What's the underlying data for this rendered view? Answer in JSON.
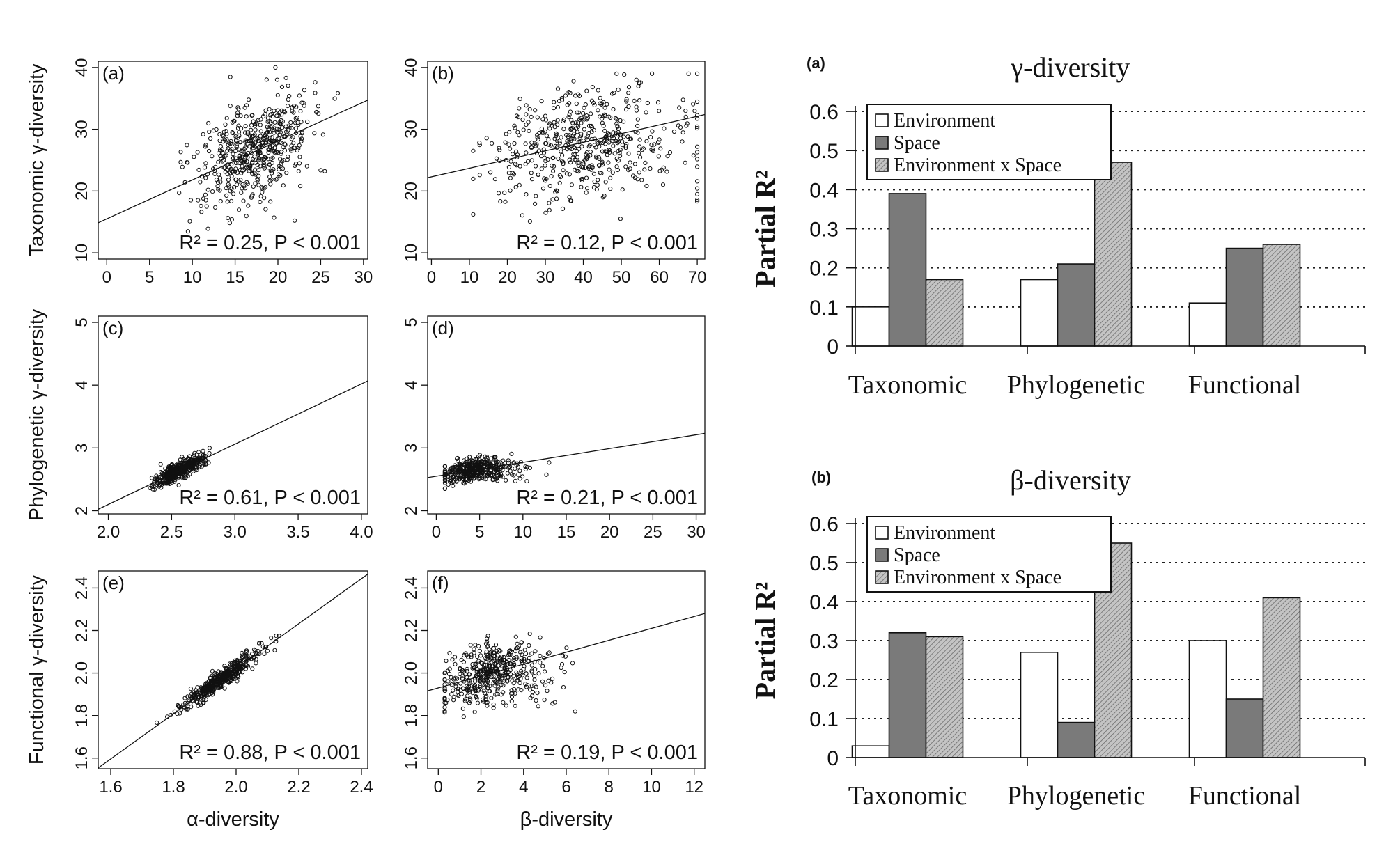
{
  "colors": {
    "environment": "#ffffff",
    "space": "#7a7a7a",
    "interaction": "#bdbdbd",
    "ink": "#111111"
  },
  "chart_data": [
    {
      "type": "scatter",
      "panel": "(a)",
      "xlabel": "",
      "ylabel": "Taxonomic γ-diversity",
      "xlim": [
        -1,
        30.5
      ],
      "ylim": [
        9,
        41
      ],
      "xticks": [
        0,
        5,
        10,
        15,
        20,
        25,
        30
      ],
      "yticks": [
        10,
        20,
        30,
        40
      ],
      "annotation": "R² = 0.25, P < 0.001",
      "fit": {
        "intercept": 15.5,
        "slope": 0.63
      },
      "cloud": {
        "xmean": 17.5,
        "xsd": 3.5,
        "ymean": 27,
        "ysd": 4.5,
        "rho": 0.5,
        "n": 520,
        "xmin": 7,
        "xmax": 27,
        "ymin": 13,
        "ymax": 40
      }
    },
    {
      "type": "scatter",
      "panel": "(b)",
      "xlabel": "",
      "ylabel": "",
      "xlim": [
        -1,
        72
      ],
      "ylim": [
        9,
        41
      ],
      "xticks": [
        0,
        10,
        20,
        30,
        40,
        50,
        60,
        70
      ],
      "yticks": [
        10,
        20,
        30,
        40
      ],
      "annotation": "R² = 0.12, P < 0.001",
      "fit": {
        "intercept": 22.3,
        "slope": 0.14
      },
      "cloud": {
        "xmean": 36,
        "xsd": 11,
        "ymean": 27.5,
        "ysd": 4.5,
        "rho": 0.35,
        "n": 520,
        "xmin": 11,
        "xmax": 70,
        "ymin": 13,
        "ymax": 39
      }
    },
    {
      "type": "scatter",
      "panel": "(c)",
      "xlabel": "",
      "ylabel": "Phylogenetic γ-diversity",
      "xlim": [
        1.92,
        4.05
      ],
      "ylim": [
        1.95,
        5.1
      ],
      "xticks": [
        2.0,
        2.5,
        3.0,
        3.5,
        4.0
      ],
      "yticks": [
        2.0,
        3.0,
        4.0,
        5.0
      ],
      "annotation": "R² = 0.61, P < 0.001",
      "fit": {
        "intercept": 0.18,
        "slope": 0.96
      },
      "cloud": {
        "xmean": 2.55,
        "xsd": 0.09,
        "ymean": 2.63,
        "ysd": 0.11,
        "rho": 0.78,
        "n": 420,
        "xmin": 2.15,
        "xmax": 2.8,
        "ymin": 2.25,
        "ymax": 3.02
      }
    },
    {
      "type": "scatter",
      "panel": "(d)",
      "xlabel": "",
      "ylabel": "",
      "xlim": [
        -1,
        31
      ],
      "ylim": [
        1.95,
        5.1
      ],
      "xticks": [
        0,
        5,
        10,
        15,
        20,
        25,
        30
      ],
      "yticks": [
        2.0,
        3.0,
        4.0,
        5.0
      ],
      "annotation": "R² = 0.21, P < 0.001",
      "fit": {
        "intercept": 2.55,
        "slope": 0.022
      },
      "cloud": {
        "xmean": 3.8,
        "xsd": 2.0,
        "ymean": 2.65,
        "ysd": 0.1,
        "rho": 0.45,
        "n": 420,
        "xmin": 1.0,
        "xmax": 16.5,
        "ymin": 2.35,
        "ymax": 3.05
      }
    },
    {
      "type": "scatter",
      "panel": "(e)",
      "xlabel": "α-diversity",
      "ylabel": "Functional γ-diversity",
      "xlim": [
        1.56,
        2.42
      ],
      "ylim": [
        1.55,
        2.48
      ],
      "xticks": [
        1.6,
        1.8,
        2.0,
        2.2,
        2.4
      ],
      "yticks": [
        1.6,
        1.8,
        2.0,
        2.2,
        2.4
      ],
      "annotation": "R² = 0.88, P < 0.001",
      "fit": {
        "intercept": -0.1,
        "slope": 1.06
      },
      "cloud": {
        "xmean": 1.95,
        "xsd": 0.07,
        "ymean": 1.97,
        "ysd": 0.075,
        "rho": 0.95,
        "n": 450,
        "xmin": 1.7,
        "xmax": 2.27,
        "ymin": 1.75,
        "ymax": 2.38
      }
    },
    {
      "type": "scatter",
      "panel": "(f)",
      "xlabel": "β-diversity",
      "ylabel": "",
      "xlim": [
        -0.5,
        12.5
      ],
      "ylim": [
        1.55,
        2.48
      ],
      "xticks": [
        0,
        2,
        4,
        6,
        8,
        10,
        12
      ],
      "yticks": [
        1.6,
        1.8,
        2.0,
        2.2,
        2.4
      ],
      "annotation": "R² = 0.19, P < 0.001",
      "fit": {
        "intercept": 1.93,
        "slope": 0.028
      },
      "cloud": {
        "xmean": 2.2,
        "xsd": 1.1,
        "ymean": 1.99,
        "ysd": 0.075,
        "rho": 0.4,
        "n": 450,
        "xmin": 0.3,
        "xmax": 11.2,
        "ymin": 1.75,
        "ymax": 2.37
      }
    },
    {
      "type": "bar",
      "panel": "(a)",
      "title": "γ-diversity",
      "ylabel": "Partial R²",
      "categories": [
        "Taxonomic",
        "Phylogenetic",
        "Functional"
      ],
      "series": [
        {
          "name": "Environment",
          "values": [
            0.1,
            0.17,
            0.11
          ]
        },
        {
          "name": "Space",
          "values": [
            0.39,
            0.21,
            0.25
          ]
        },
        {
          "name": "Environment x Space",
          "values": [
            0.17,
            0.47,
            0.26
          ]
        }
      ],
      "ylim": [
        0,
        0.6
      ],
      "yticks": [
        "0",
        "0.1",
        "0.2",
        "0.3",
        "0.4",
        "0.5",
        "0.6"
      ],
      "grid": "dotted horizontal",
      "legend": "top-left"
    },
    {
      "type": "bar",
      "panel": "(b)",
      "title": "β-diversity",
      "ylabel": "Partial R²",
      "categories": [
        "Taxonomic",
        "Phylogenetic",
        "Functional"
      ],
      "series": [
        {
          "name": "Environment",
          "values": [
            0.03,
            0.27,
            0.3
          ]
        },
        {
          "name": "Space",
          "values": [
            0.32,
            0.09,
            0.15
          ]
        },
        {
          "name": "Environment x Space",
          "values": [
            0.31,
            0.55,
            0.41
          ]
        }
      ],
      "ylim": [
        0,
        0.6
      ],
      "yticks": [
        "0",
        "0.1",
        "0.2",
        "0.3",
        "0.4",
        "0.5",
        "0.6"
      ],
      "grid": "dotted horizontal",
      "legend": "top-left"
    }
  ]
}
